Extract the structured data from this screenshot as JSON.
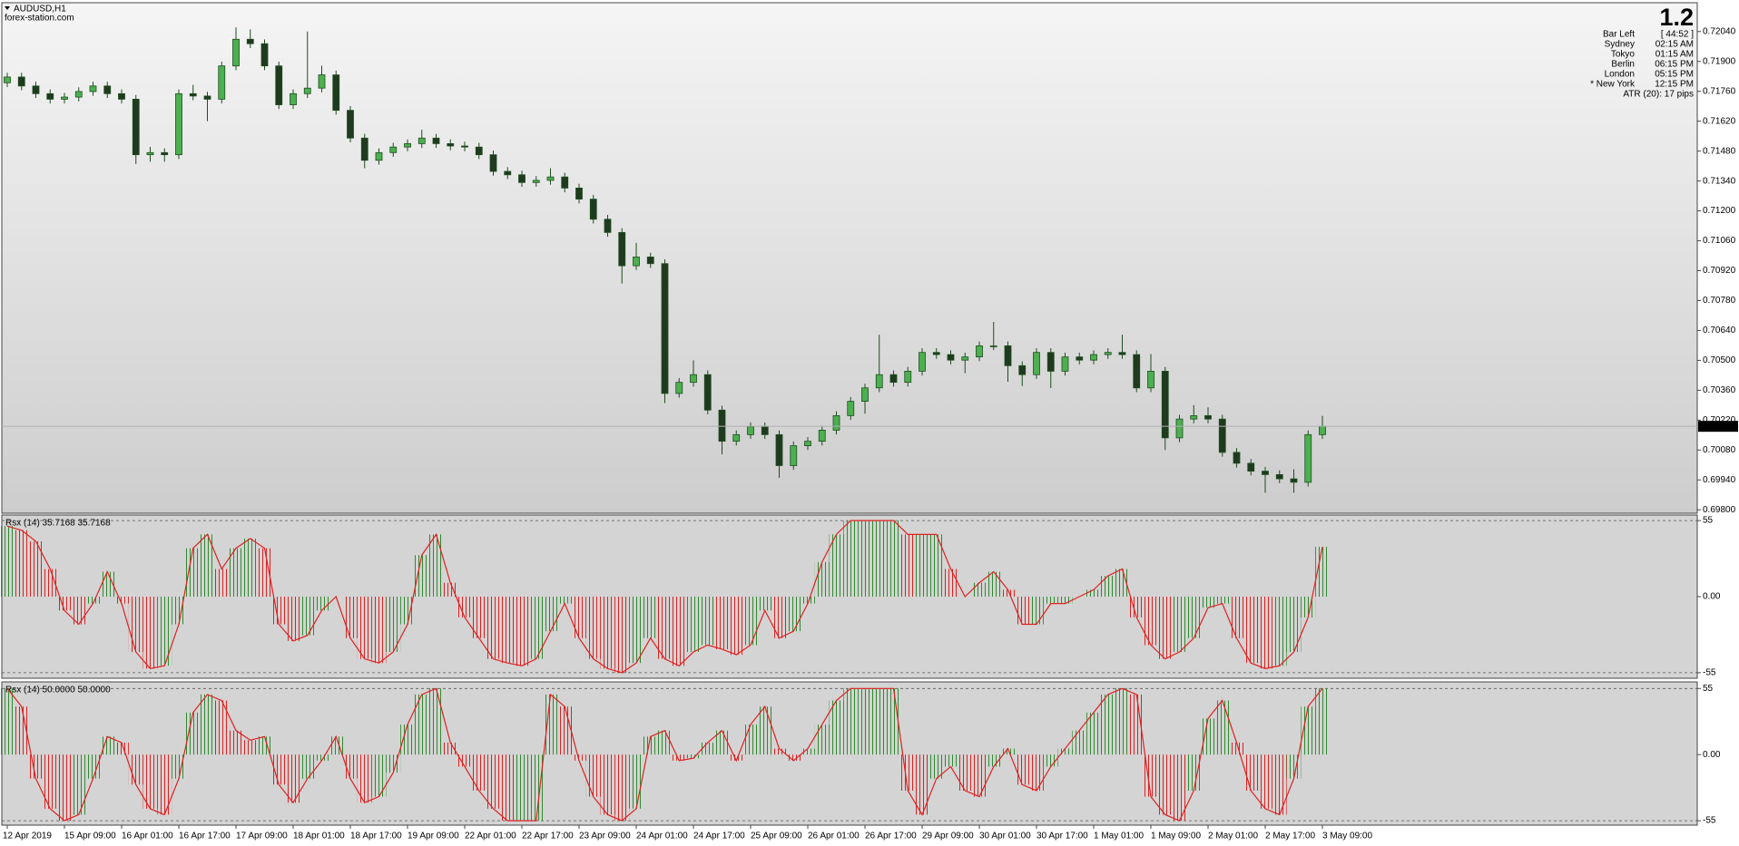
{
  "overlay": {
    "big_value": "1.2",
    "rows": [
      [
        "Bar Left",
        "[ 44:52 ]"
      ],
      [
        "Sydney",
        "02:15 AM"
      ],
      [
        "Tokyo",
        "01:15 AM"
      ],
      [
        "Berlin",
        "06:15 PM"
      ],
      [
        "London",
        "05:15 PM"
      ],
      [
        "* New York",
        "12:15 PM"
      ]
    ],
    "highlight_row": 5,
    "highlight_color": "#ff0000",
    "text_color": "#8c8c8c",
    "atr": "ATR (20): 17 pips"
  },
  "time_axis": {
    "labels": [
      "12 Apr 2019",
      "15 Apr 09:00",
      "16 Apr 01:00",
      "16 Apr 17:00",
      "17 Apr 09:00",
      "18 Apr 01:00",
      "18 Apr 17:00",
      "19 Apr 09:00",
      "22 Apr 01:00",
      "22 Apr 17:00",
      "23 Apr 09:00",
      "24 Apr 01:00",
      "24 Apr 17:00",
      "25 Apr 09:00",
      "26 Apr 01:00",
      "26 Apr 17:00",
      "29 Apr 09:00",
      "30 Apr 01:00",
      "30 Apr 17:00",
      "1 May 01:00",
      "1 May 09:00",
      "2 May 01:00",
      "2 May 17:00",
      "3 May 09:00"
    ]
  },
  "chart_data": [
    {
      "type": "candlestick",
      "title": "AUDUSD,H1",
      "subtitle": "forex-station.com",
      "colors": {
        "up": "#4caf50",
        "down": "#1f3a1f",
        "wick": "#1e4d1e"
      },
      "candles": [
        [
          0.718,
          0.71847,
          0.7178,
          0.71827
        ],
        [
          0.71827,
          0.71847,
          0.71765,
          0.71785
        ],
        [
          0.71785,
          0.71805,
          0.71729,
          0.71749
        ],
        [
          0.71749,
          0.71769,
          0.71703,
          0.71723
        ],
        [
          0.71723,
          0.71753,
          0.71703,
          0.71733
        ],
        [
          0.71733,
          0.71779,
          0.71713,
          0.71759
        ],
        [
          0.71759,
          0.71805,
          0.71739,
          0.71785
        ],
        [
          0.71785,
          0.71805,
          0.71729,
          0.71749
        ],
        [
          0.71749,
          0.71769,
          0.71703,
          0.71723
        ],
        [
          0.71723,
          0.71743,
          0.7142,
          0.71463
        ],
        [
          0.71463,
          0.715,
          0.7143,
          0.71473
        ],
        [
          0.71473,
          0.71493,
          0.7143,
          0.71463
        ],
        [
          0.71463,
          0.71769,
          0.71443,
          0.71749
        ],
        [
          0.71749,
          0.7179,
          0.71718,
          0.71738
        ],
        [
          0.71738,
          0.71758,
          0.7162,
          0.71723
        ],
        [
          0.71723,
          0.71899,
          0.71703,
          0.71879
        ],
        [
          0.71879,
          0.7206,
          0.71859,
          0.72004
        ],
        [
          0.72004,
          0.7205,
          0.71963,
          0.71983
        ],
        [
          0.71983,
          0.72003,
          0.71859,
          0.71879
        ],
        [
          0.71879,
          0.71899,
          0.71677,
          0.71697
        ],
        [
          0.71697,
          0.71769,
          0.71677,
          0.71749
        ],
        [
          0.71749,
          0.7204,
          0.71729,
          0.71775
        ],
        [
          0.71775,
          0.7188,
          0.71755,
          0.71837
        ],
        [
          0.71837,
          0.71857,
          0.71651,
          0.71671
        ],
        [
          0.71671,
          0.71691,
          0.71521,
          0.71541
        ],
        [
          0.71541,
          0.71561,
          0.714,
          0.71437
        ],
        [
          0.71437,
          0.71493,
          0.71417,
          0.71473
        ],
        [
          0.71473,
          0.71519,
          0.71453,
          0.71499
        ],
        [
          0.71499,
          0.71535,
          0.71479,
          0.71515
        ],
        [
          0.71515,
          0.7158,
          0.71495,
          0.71541
        ],
        [
          0.71541,
          0.71561,
          0.71495,
          0.71515
        ],
        [
          0.71515,
          0.71535,
          0.71484,
          0.71504
        ],
        [
          0.71504,
          0.71524,
          0.71479,
          0.71499
        ],
        [
          0.71499,
          0.71519,
          0.71443,
          0.71463
        ],
        [
          0.71463,
          0.71483,
          0.71365,
          0.71385
        ],
        [
          0.71385,
          0.71405,
          0.71349,
          0.71369
        ],
        [
          0.71369,
          0.71389,
          0.71313,
          0.71333
        ],
        [
          0.71333,
          0.71363,
          0.71313,
          0.71343
        ],
        [
          0.71343,
          0.714,
          0.71323,
          0.71359
        ],
        [
          0.71359,
          0.71379,
          0.71287,
          0.71307
        ],
        [
          0.71307,
          0.71327,
          0.71235,
          0.71255
        ],
        [
          0.71255,
          0.71275,
          0.71141,
          0.71161
        ],
        [
          0.71161,
          0.71181,
          0.71079,
          0.71099
        ],
        [
          0.71099,
          0.71119,
          0.7086,
          0.70943
        ],
        [
          0.70943,
          0.7105,
          0.70923,
          0.70984
        ],
        [
          0.70984,
          0.71004,
          0.70933,
          0.70953
        ],
        [
          0.70953,
          0.70973,
          0.703,
          0.70345
        ],
        [
          0.70345,
          0.70417,
          0.70325,
          0.70397
        ],
        [
          0.70397,
          0.705,
          0.70377,
          0.70433
        ],
        [
          0.70433,
          0.70453,
          0.70247,
          0.70267
        ],
        [
          0.70267,
          0.70287,
          0.7006,
          0.70121
        ],
        [
          0.70121,
          0.70172,
          0.70101,
          0.70152
        ],
        [
          0.70152,
          0.70209,
          0.70132,
          0.70189
        ],
        [
          0.70189,
          0.70209,
          0.70132,
          0.70152
        ],
        [
          0.70152,
          0.70172,
          0.6995,
          0.70007
        ],
        [
          0.70007,
          0.7012,
          0.69987,
          0.701
        ],
        [
          0.701,
          0.70141,
          0.7008,
          0.70121
        ],
        [
          0.70121,
          0.70193,
          0.70101,
          0.70173
        ],
        [
          0.70173,
          0.70261,
          0.70153,
          0.70241
        ],
        [
          0.70241,
          0.70328,
          0.70221,
          0.70308
        ],
        [
          0.70308,
          0.70391,
          0.7025,
          0.70371
        ],
        [
          0.70371,
          0.7062,
          0.70351,
          0.70433
        ],
        [
          0.70433,
          0.70453,
          0.70377,
          0.70397
        ],
        [
          0.70397,
          0.70469,
          0.70377,
          0.70449
        ],
        [
          0.70449,
          0.70557,
          0.70429,
          0.70537
        ],
        [
          0.70537,
          0.70557,
          0.70507,
          0.70527
        ],
        [
          0.70527,
          0.70547,
          0.70481,
          0.70501
        ],
        [
          0.70501,
          0.70536,
          0.7044,
          0.70516
        ],
        [
          0.70516,
          0.70588,
          0.70496,
          0.70568
        ],
        [
          0.70568,
          0.7068,
          0.70548,
          0.70568
        ],
        [
          0.70568,
          0.70588,
          0.704,
          0.70475
        ],
        [
          0.70475,
          0.70495,
          0.7038,
          0.70433
        ],
        [
          0.70433,
          0.70557,
          0.70413,
          0.70537
        ],
        [
          0.70537,
          0.70557,
          0.7037,
          0.70449
        ],
        [
          0.70449,
          0.70536,
          0.70429,
          0.70516
        ],
        [
          0.70516,
          0.70536,
          0.70481,
          0.70501
        ],
        [
          0.70501,
          0.70547,
          0.70481,
          0.70527
        ],
        [
          0.70527,
          0.70557,
          0.70507,
          0.70537
        ],
        [
          0.70537,
          0.7062,
          0.70507,
          0.70527
        ],
        [
          0.70527,
          0.70547,
          0.70351,
          0.70371
        ],
        [
          0.70371,
          0.7053,
          0.70351,
          0.70449
        ],
        [
          0.70449,
          0.70469,
          0.7008,
          0.70137
        ],
        [
          0.70137,
          0.70245,
          0.70117,
          0.70225
        ],
        [
          0.70225,
          0.7029,
          0.70205,
          0.70241
        ],
        [
          0.70241,
          0.7028,
          0.70205,
          0.70225
        ],
        [
          0.70225,
          0.70245,
          0.70049,
          0.70069
        ],
        [
          0.70069,
          0.70089,
          0.69998,
          0.70018
        ],
        [
          0.70018,
          0.70038,
          0.69961,
          0.69981
        ],
        [
          0.69981,
          0.70001,
          0.6988,
          0.69965
        ],
        [
          0.69965,
          0.69985,
          0.69925,
          0.69945
        ],
        [
          0.69945,
          0.6999,
          0.6988,
          0.69929
        ],
        [
          0.69929,
          0.70172,
          0.69909,
          0.70152
        ],
        [
          0.70152,
          0.7024,
          0.70132,
          0.70191
        ]
      ],
      "ylim": [
        0.69784,
        0.72175
      ],
      "yticks": [
        {
          "value": 0.7204,
          "label": "0.72040"
        },
        {
          "value": 0.719,
          "label": "0.71900"
        },
        {
          "value": 0.7176,
          "label": "0.71760"
        },
        {
          "value": 0.7162,
          "label": "0.71620"
        },
        {
          "value": 0.7148,
          "label": "0.71480"
        },
        {
          "value": 0.7134,
          "label": "0.71340"
        },
        {
          "value": 0.712,
          "label": "0.71200"
        },
        {
          "value": 0.7106,
          "label": "0.71060"
        },
        {
          "value": 0.7092,
          "label": "0.70920"
        },
        {
          "value": 0.7078,
          "label": "0.70780"
        },
        {
          "value": 0.7064,
          "label": "0.70640"
        },
        {
          "value": 0.705,
          "label": "0.70500"
        },
        {
          "value": 0.7036,
          "label": "0.70360"
        },
        {
          "value": 0.7022,
          "label": "0.70220"
        },
        {
          "value": 0.7008,
          "label": "0.70080"
        },
        {
          "value": 0.6994,
          "label": "0.69940"
        },
        {
          "value": 0.698,
          "label": "0.69800"
        }
      ],
      "last_price": {
        "value": 0.70191,
        "label": "0.70191"
      }
    },
    {
      "type": "oscillator",
      "title": "Rsx (14) 35.7168 35.7168",
      "colors": {
        "rise": "#2e8b2e",
        "fall": "#e02020",
        "line": "#e02020"
      },
      "values": [
        51,
        48,
        40,
        20,
        -10,
        -20,
        -5,
        18,
        -5,
        -40,
        -52,
        -50,
        -20,
        35,
        45,
        20,
        35,
        42,
        35,
        -20,
        -32,
        -28,
        -10,
        0,
        -30,
        -45,
        -48,
        -40,
        -20,
        30,
        45,
        10,
        -15,
        -30,
        -45,
        -48,
        -50,
        -45,
        -25,
        -5,
        -30,
        -45,
        -52,
        -55,
        -48,
        -30,
        -45,
        -50,
        -40,
        -35,
        -38,
        -42,
        -35,
        -10,
        -30,
        -25,
        -5,
        25,
        45,
        55,
        55,
        55,
        55,
        45,
        45,
        45,
        20,
        0,
        10,
        18,
        5,
        -20,
        -20,
        -5,
        -5,
        0,
        5,
        15,
        20,
        -15,
        -35,
        -45,
        -40,
        -30,
        -8,
        -5,
        -30,
        -48,
        -52,
        -50,
        -40,
        -15,
        36
      ],
      "ylim": [
        -59,
        59
      ],
      "yticks": [
        55,
        {
          "value": 0,
          "label": "0.00"
        },
        -55
      ],
      "grid": "dashed"
    },
    {
      "type": "oscillator",
      "title": "Rsx (14) 50.0000 50.0000",
      "colors": {
        "rise": "#2e8b2e",
        "fall": "#e02020",
        "line": "#e02020"
      },
      "values": [
        55,
        40,
        -20,
        -45,
        -55,
        -50,
        -20,
        15,
        10,
        -25,
        -45,
        -50,
        -20,
        35,
        50,
        45,
        20,
        12,
        15,
        -25,
        -40,
        -20,
        -5,
        15,
        -20,
        -40,
        -35,
        -15,
        25,
        50,
        55,
        10,
        -10,
        -30,
        -45,
        -55,
        -55,
        -55,
        50,
        40,
        -5,
        -35,
        -50,
        -55,
        -45,
        15,
        20,
        -5,
        -3,
        10,
        20,
        -5,
        25,
        40,
        5,
        -5,
        5,
        25,
        45,
        55,
        55,
        55,
        55,
        -30,
        -50,
        -20,
        -10,
        -30,
        -35,
        -10,
        5,
        -25,
        -30,
        -10,
        5,
        20,
        35,
        50,
        55,
        50,
        -35,
        -50,
        -55,
        -30,
        30,
        45,
        10,
        -30,
        -45,
        -50,
        -20,
        40,
        55
      ],
      "ylim": [
        -58.7,
        60.5
      ],
      "yticks": [
        55,
        {
          "value": 0,
          "label": "0.00"
        },
        -55
      ],
      "grid": "dashed"
    }
  ]
}
